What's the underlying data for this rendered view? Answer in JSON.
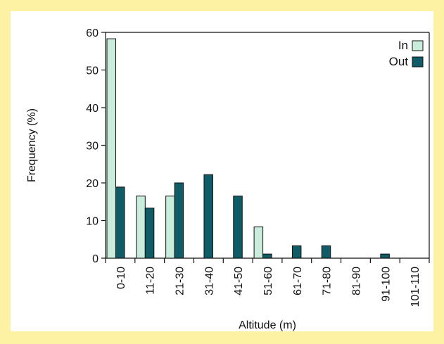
{
  "chart_data": {
    "type": "bar",
    "title": "",
    "xlabel": "Altitude (m)",
    "ylabel": "Frequency (%)",
    "ylim": [
      0,
      60
    ],
    "yticks": [
      0,
      10,
      20,
      30,
      40,
      50,
      60
    ],
    "grid": false,
    "legend_position": "top-right",
    "categories": [
      "0-10",
      "11-20",
      "21-30",
      "31-40",
      "41-50",
      "51-60",
      "61-70",
      "71-80",
      "81-90",
      "91-100",
      "101-110"
    ],
    "series": [
      {
        "name": "In",
        "color": "#c9ecdc",
        "values": [
          58.3,
          16.5,
          16.5,
          0,
          0,
          8.3,
          0,
          0,
          0,
          0,
          0
        ]
      },
      {
        "name": "Out",
        "color": "#0f5b66",
        "values": [
          18.9,
          13.3,
          20.0,
          22.2,
          16.5,
          1.1,
          3.3,
          3.3,
          0,
          1.1,
          0
        ]
      }
    ]
  },
  "colors": {
    "background": "#fdf1a4",
    "panel": "#ffffff"
  }
}
